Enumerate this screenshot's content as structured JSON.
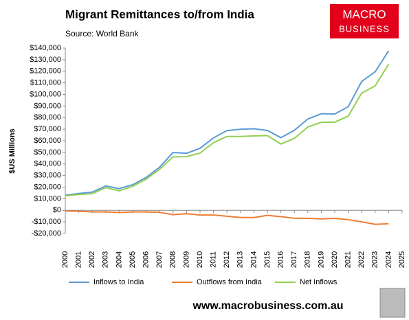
{
  "chart_data": {
    "type": "line",
    "title": "Migrant Remittances to/from India",
    "subtitle": "Source: World Bank",
    "y_label": "$US Millions",
    "brand_top": "MACRO",
    "brand_bottom": "BUSINESS",
    "website": "www.macrobusiness.com.au",
    "x": [
      2000,
      2001,
      2002,
      2003,
      2004,
      2005,
      2006,
      2007,
      2008,
      2009,
      2010,
      2011,
      2012,
      2013,
      2014,
      2015,
      2016,
      2017,
      2018,
      2019,
      2020,
      2021,
      2022,
      2023,
      2024
    ],
    "xlim": [
      2000,
      2025
    ],
    "xticks": [
      2000,
      2001,
      2002,
      2003,
      2004,
      2005,
      2006,
      2007,
      2008,
      2009,
      2010,
      2011,
      2012,
      2013,
      2014,
      2015,
      2016,
      2017,
      2018,
      2019,
      2020,
      2021,
      2022,
      2023,
      2024,
      2025
    ],
    "ylim": [
      -20000,
      140000
    ],
    "yticks": [
      {
        "value": -20000,
        "label": "-$20,000"
      },
      {
        "value": -10000,
        "label": "-$10,000"
      },
      {
        "value": 0,
        "label": "$0"
      },
      {
        "value": 10000,
        "label": "$10,000"
      },
      {
        "value": 20000,
        "label": "$20,000"
      },
      {
        "value": 30000,
        "label": "$30,000"
      },
      {
        "value": 40000,
        "label": "$40,000"
      },
      {
        "value": 50000,
        "label": "$50,000"
      },
      {
        "value": 60000,
        "label": "$60,000"
      },
      {
        "value": 70000,
        "label": "$70,000"
      },
      {
        "value": 80000,
        "label": "$80,000"
      },
      {
        "value": 90000,
        "label": "$90,000"
      },
      {
        "value": 100000,
        "label": "$100,000"
      },
      {
        "value": 110000,
        "label": "$110,000"
      },
      {
        "value": 120000,
        "label": "$120,000"
      },
      {
        "value": 130000,
        "label": "$130,000"
      },
      {
        "value": 140000,
        "label": "$140,000"
      }
    ],
    "series": [
      {
        "name": "Inflows to India",
        "color": "#5b9bd5",
        "values": [
          13000,
          14500,
          15700,
          21000,
          18700,
          22100,
          28300,
          37200,
          49900,
          49200,
          53500,
          62500,
          68800,
          69900,
          70400,
          68900,
          62700,
          69000,
          78800,
          83300,
          83100,
          89400,
          111200,
          119500,
          137700
        ]
      },
      {
        "name": "Outflows from India",
        "color": "#ed7d31",
        "values": [
          -600,
          -800,
          -1400,
          -1400,
          -1900,
          -1400,
          -1400,
          -1800,
          -3800,
          -2900,
          -4100,
          -4100,
          -5100,
          -6200,
          -6200,
          -4400,
          -5500,
          -6900,
          -6900,
          -7400,
          -7000,
          -8100,
          -10000,
          -12100,
          -11600
        ]
      },
      {
        "name": "Net Inflows",
        "color": "#92d050",
        "values": [
          12400,
          13700,
          14300,
          19600,
          16800,
          20700,
          26900,
          35400,
          46100,
          46300,
          49400,
          58400,
          63700,
          63700,
          64200,
          64500,
          57200,
          62100,
          71900,
          75900,
          76100,
          81300,
          101200,
          107400,
          126100
        ]
      }
    ]
  }
}
